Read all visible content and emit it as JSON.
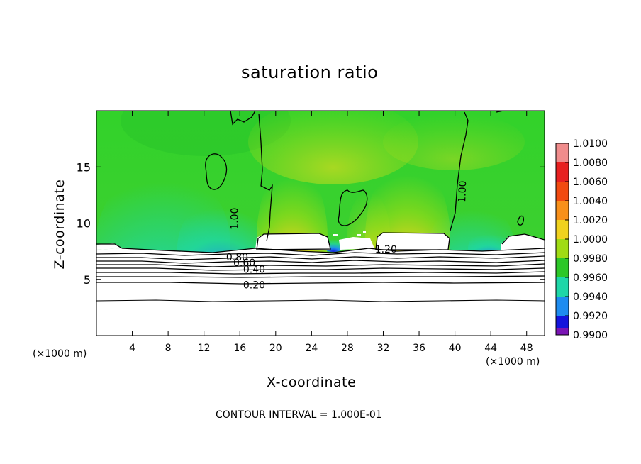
{
  "chart_data": {
    "type": "heatmap",
    "title": "saturation ratio",
    "xlabel": "X-coordinate",
    "ylabel": "Z-coordinate",
    "x_unit_left": "(×1000 m)",
    "x_unit_right": "(×1000 m)",
    "xlim": [
      0,
      50
    ],
    "ylim": [
      0,
      20
    ],
    "x_ticks": [
      "4",
      "8",
      "12",
      "16",
      "20",
      "24",
      "28",
      "32",
      "36",
      "40",
      "44",
      "48"
    ],
    "x_tick_values": [
      4,
      8,
      12,
      16,
      20,
      24,
      28,
      32,
      36,
      40,
      44,
      48
    ],
    "y_ticks": [
      "5",
      "10",
      "15"
    ],
    "y_tick_values": [
      5,
      10,
      15
    ],
    "colorbar": {
      "labels": [
        "1.0100",
        "1.0080",
        "1.0060",
        "1.0040",
        "1.0020",
        "1.0000",
        "0.9980",
        "0.9960",
        "0.9940",
        "0.9920",
        "0.9900"
      ],
      "colors": [
        "#f08c8c",
        "#e82020",
        "#f24a10",
        "#f8901a",
        "#f0d21e",
        "#a0dc14",
        "#2cc828",
        "#1ed7a8",
        "#1e8cf0",
        "#1414dc",
        "#7a14b4"
      ]
    },
    "contour_labels": [
      {
        "text": "1.00",
        "x": 15.4,
        "z": 10.4,
        "rotate": -90
      },
      {
        "text": "1.00",
        "x": 40.8,
        "z": 12.8,
        "rotate": -88
      },
      {
        "text": "1.20",
        "x": 32.3,
        "z": 7.7,
        "rotate": 0
      },
      {
        "text": "0.80",
        "x": 15.7,
        "z": 7.0,
        "rotate": 0
      },
      {
        "text": "0.60",
        "x": 16.5,
        "z": 6.5,
        "rotate": 0
      },
      {
        "text": "0.40",
        "x": 17.6,
        "z": 5.9,
        "rotate": 0
      },
      {
        "text": "0.20",
        "x": 17.6,
        "z": 4.5,
        "rotate": 0
      }
    ],
    "contour_interval": "CONTOUR INTERVAL = 1.000E-01"
  }
}
